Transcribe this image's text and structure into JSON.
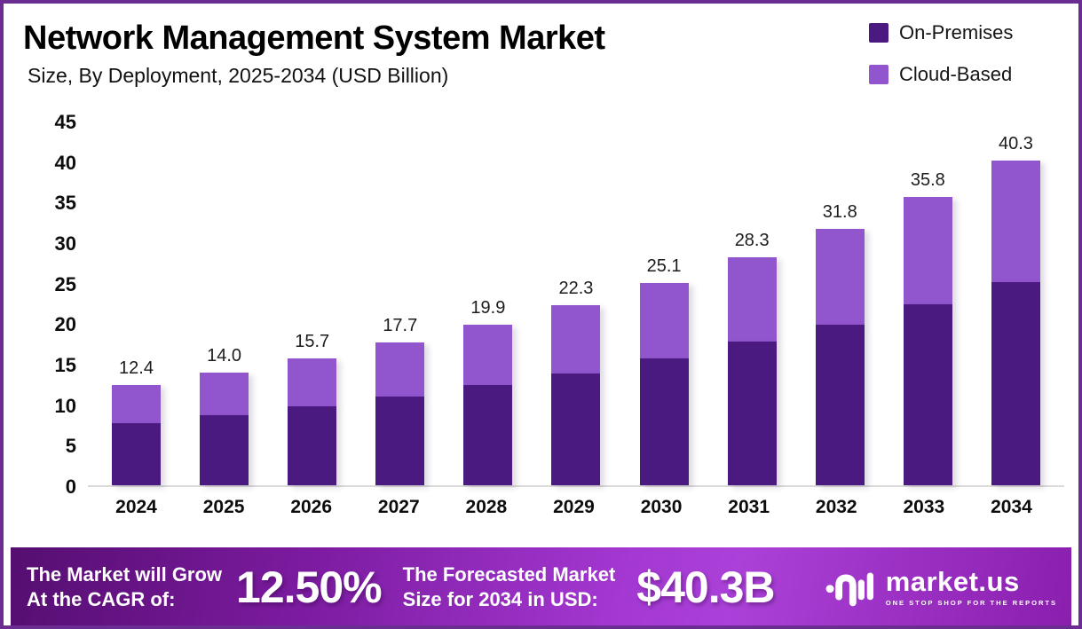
{
  "header": {
    "title": "Network Management System Market",
    "subtitle": "Size, By Deployment, 2025-2034 (USD Billion)"
  },
  "legend": [
    {
      "label": "On-Premises",
      "color": "#4A1A80"
    },
    {
      "label": "Cloud-Based",
      "color": "#9155CD"
    }
  ],
  "chart_data": {
    "type": "bar",
    "stacked": true,
    "title": "Network Management System Market Size, By Deployment, 2025-2034 (USD Billion)",
    "xlabel": "",
    "ylabel": "",
    "categories": [
      "2024",
      "2025",
      "2026",
      "2027",
      "2028",
      "2029",
      "2030",
      "2031",
      "2032",
      "2033",
      "2034"
    ],
    "series": [
      {
        "name": "On-Premises",
        "color": "#4A1A80",
        "values": [
          7.7,
          8.7,
          9.8,
          11.0,
          12.4,
          13.9,
          15.7,
          17.8,
          19.9,
          22.4,
          25.2
        ]
      },
      {
        "name": "Cloud-Based",
        "color": "#9155CD",
        "values": [
          4.7,
          5.3,
          5.9,
          6.7,
          7.5,
          8.4,
          9.4,
          10.5,
          11.9,
          13.4,
          15.1
        ]
      }
    ],
    "totals": [
      12.4,
      14.0,
      15.7,
      17.7,
      19.9,
      22.3,
      25.1,
      28.3,
      31.8,
      35.8,
      40.3
    ],
    "total_labels": [
      "12.4",
      "14.0",
      "15.7",
      "17.7",
      "19.9",
      "22.3",
      "25.1",
      "28.3",
      "31.8",
      "35.8",
      "40.3"
    ],
    "ylim": [
      0,
      45
    ],
    "yticks": [
      45,
      40,
      35,
      30,
      25,
      20,
      15,
      10,
      5,
      0
    ],
    "grid": false,
    "legend_position": "top-right"
  },
  "footer": {
    "cagr": {
      "line1": "The Market will Grow",
      "line2": "At the CAGR of:",
      "value": "12.50%"
    },
    "forecast": {
      "line1": "The Forecasted Market",
      "line2": "Size for 2034 in USD:",
      "value": "$40.3B"
    },
    "brand": {
      "name": "market.us",
      "tagline": "ONE STOP SHOP FOR THE REPORTS"
    }
  }
}
